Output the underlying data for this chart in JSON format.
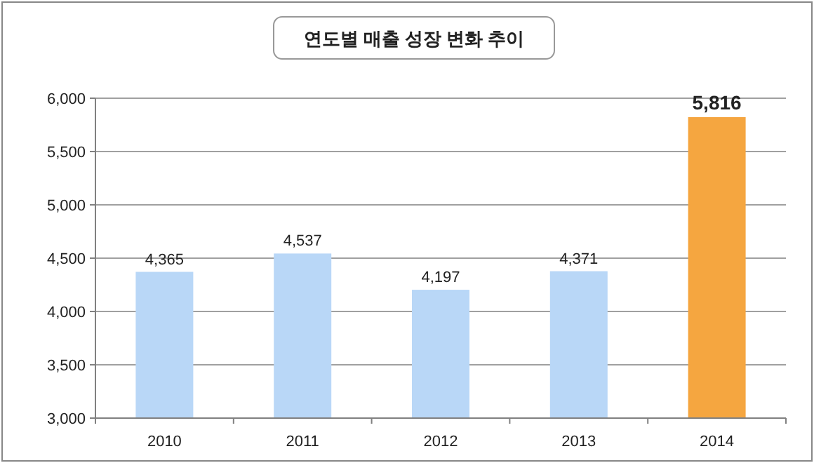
{
  "chart_data": {
    "type": "bar",
    "title": "연도별 매출 성장 변화 추이",
    "categories": [
      "2010",
      "2011",
      "2012",
      "2013",
      "2014"
    ],
    "values": [
      4365,
      4537,
      4197,
      4371,
      5816
    ],
    "value_labels": [
      "4,365",
      "4,537",
      "4,197",
      "4,371",
      "5,816"
    ],
    "colors": [
      "#b9d7f7",
      "#b9d7f7",
      "#b9d7f7",
      "#b9d7f7",
      "#f5a640"
    ],
    "ylim": [
      3000,
      6000
    ],
    "yticks": [
      {
        "value": 3000,
        "label": "3,000"
      },
      {
        "value": 3500,
        "label": "3,500"
      },
      {
        "value": 4000,
        "label": "4,000"
      },
      {
        "value": 4500,
        "label": "4,500"
      },
      {
        "value": 5000,
        "label": "5,000"
      },
      {
        "value": 5500,
        "label": "5,500"
      },
      {
        "value": 6000,
        "label": "6,000"
      }
    ],
    "grid": "y"
  }
}
